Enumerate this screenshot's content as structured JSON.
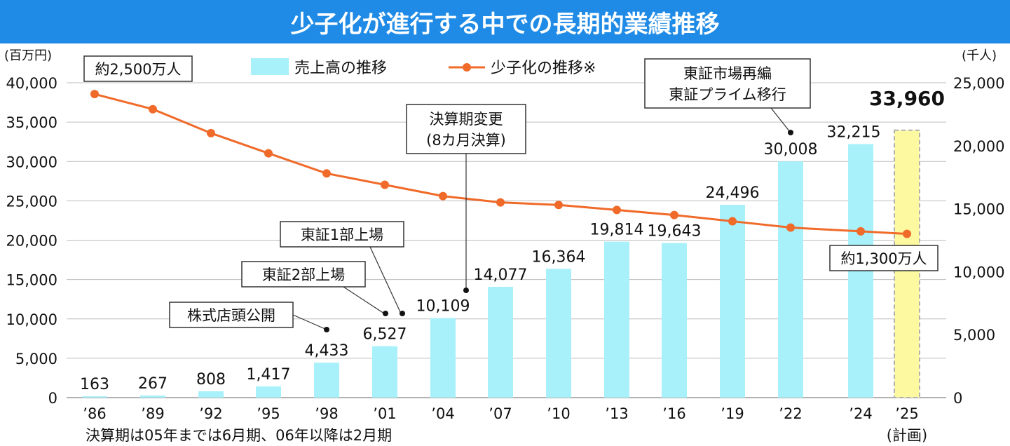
{
  "header": {
    "title": "少子化が進行する中での長期的業績推移"
  },
  "chart_data": {
    "type": "bar+line",
    "title": "少子化が進行する中での長期的業績推移",
    "categories": [
      "’86",
      "’89",
      "’92",
      "’95",
      "’98",
      "’01",
      "’04",
      "’07",
      "’10",
      "’13",
      "’16",
      "’19",
      "’22",
      "’24",
      "’25"
    ],
    "category_sub": {
      "’25": "(計画)"
    },
    "left_axis": {
      "label": "(百万円)",
      "ylim": [
        0,
        40000
      ],
      "ticks": [
        "0",
        "5,000",
        "10,000",
        "15,000",
        "20,000",
        "25,000",
        "30,000",
        "35,000",
        "40,000"
      ]
    },
    "right_axis": {
      "label": "(千人)",
      "ylim": [
        0,
        25000
      ],
      "ticks": [
        "0",
        "5,000",
        "10,000",
        "15,000",
        "20,000",
        "25,000"
      ]
    },
    "series": [
      {
        "name": "売上高の推移",
        "axis": "left",
        "type": "bar",
        "color": "#a8f0fa",
        "values": [
          163,
          267,
          808,
          1417,
          4433,
          6527,
          10109,
          14077,
          16364,
          19814,
          19643,
          24496,
          30008,
          32215,
          33960
        ],
        "labels": [
          "163",
          "267",
          "808",
          "1,417",
          "4,433",
          "6,527",
          "10,109",
          "14,077",
          "16,364",
          "19,814",
          "19,643",
          "24,496",
          "30,008",
          "32,215",
          "33,960"
        ],
        "highlight": {
          "index": 14,
          "color": "#fcf9a0",
          "border": "#b0b0b0"
        }
      },
      {
        "name": "少子化の推移※",
        "axis": "right",
        "type": "line",
        "color": "#f06a2a",
        "values": [
          24100,
          22900,
          21000,
          19400,
          17800,
          16900,
          16000,
          15500,
          15300,
          14900,
          14500,
          14000,
          13500,
          13200,
          13000
        ]
      }
    ],
    "annotations": [
      {
        "text": "約2,500万人"
      },
      {
        "text": "約1,300万人"
      },
      {
        "text": "株式店頭公開"
      },
      {
        "text": "東証2部上場"
      },
      {
        "text": "東証1部上場"
      },
      {
        "lines": [
          "決算期変更",
          "(8カ月決算)"
        ]
      },
      {
        "lines": [
          "東証市場再編",
          "東証プライム移行"
        ]
      }
    ],
    "footnote": "決算期は05年までは6月期、06年以降は2月期",
    "colors": {
      "title_bg": "#1f8be6",
      "bar": "#a8f0fa",
      "bar_highlight": "#fcf9a0",
      "line": "#f06a2a",
      "grid": "#bdbdbd"
    }
  }
}
